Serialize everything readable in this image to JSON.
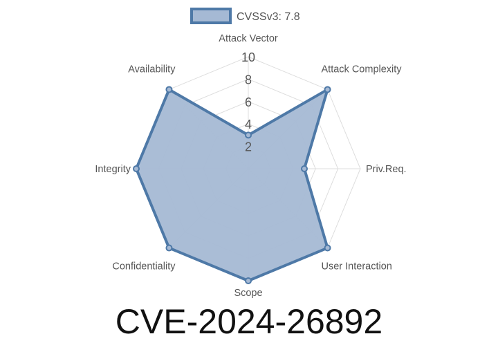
{
  "chart_data": {
    "type": "radar",
    "title": "CVE-2024-26892",
    "categories": [
      "Attack Vector",
      "Attack Complexity",
      "Priv.Req.",
      "User Interaction",
      "Scope",
      "Confidentiality",
      "Integrity",
      "Availability"
    ],
    "series": [
      {
        "name": "CVSSv3: 7.8",
        "values": [
          3,
          10,
          5,
          10,
          10,
          10,
          10,
          10
        ]
      }
    ],
    "rlim": [
      0,
      10
    ],
    "ticks": [
      "2",
      "4",
      "6",
      "8",
      "10"
    ],
    "grid": true,
    "legend": "top",
    "colors": {
      "line": "#4e79a7",
      "fill": "#a5b9d4",
      "grid": "#dddddd",
      "text": "#555555"
    }
  }
}
